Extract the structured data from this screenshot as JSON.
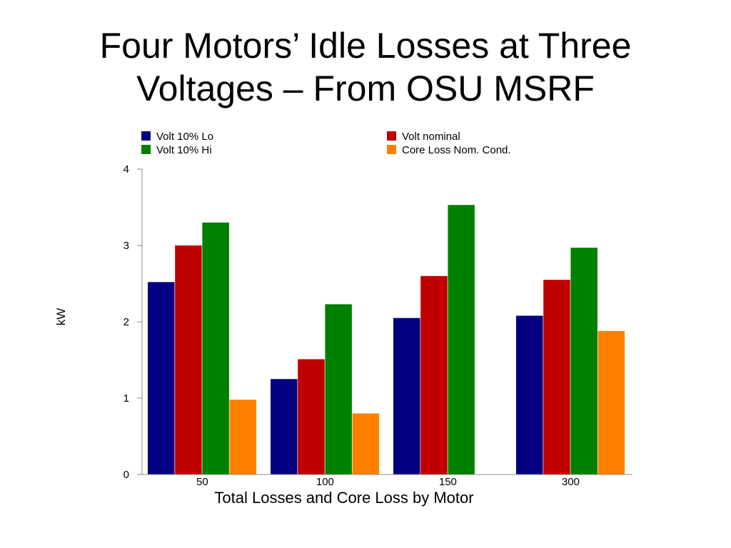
{
  "slide": {
    "title_line1": "Four Motors’ Idle Losses at Three",
    "title_line2": "Voltages – From OSU MSRF"
  },
  "chart_data": {
    "type": "bar",
    "title": "",
    "xlabel": "Total Losses and Core Loss by Motor",
    "ylabel": "kW",
    "categories": [
      "50",
      "100",
      "150",
      "300"
    ],
    "ylim": [
      0,
      4
    ],
    "yticks": [
      0,
      1,
      2,
      3,
      4
    ],
    "grid": false,
    "legend_position": "top",
    "series": [
      {
        "name": "Volt 10% Lo",
        "color": "#000080",
        "values": [
          2.52,
          1.25,
          2.05,
          2.08
        ]
      },
      {
        "name": "Volt nominal",
        "color": "#c00000",
        "values": [
          3.0,
          1.51,
          2.6,
          2.55
        ]
      },
      {
        "name": "Volt 10% Hi",
        "color": "#008000",
        "values": [
          3.3,
          2.23,
          3.53,
          2.97
        ]
      },
      {
        "name": "Core Loss Nom. Cond.",
        "color": "#ff8000",
        "values": [
          0.98,
          0.8,
          null,
          1.88
        ]
      }
    ]
  }
}
